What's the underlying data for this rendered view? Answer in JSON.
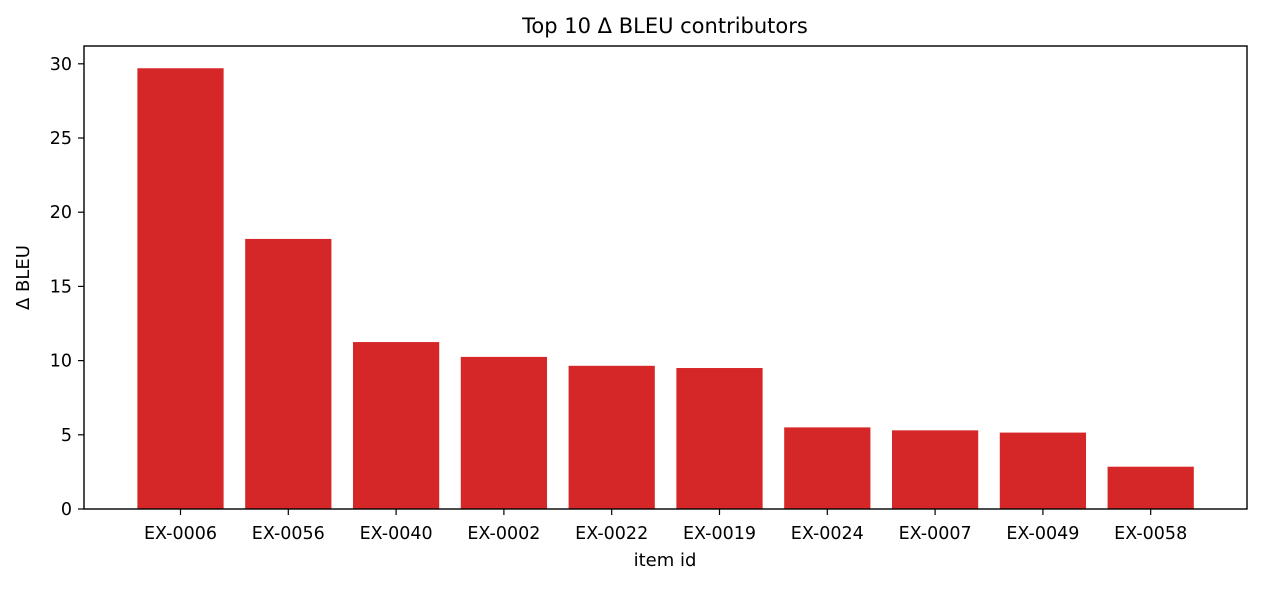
{
  "chart_data": {
    "type": "bar",
    "title": "Top 10 Δ BLEU contributors",
    "xlabel": "item id",
    "ylabel": "Δ BLEU",
    "categories": [
      "EX-0006",
      "EX-0056",
      "EX-0040",
      "EX-0002",
      "EX-0022",
      "EX-0019",
      "EX-0024",
      "EX-0007",
      "EX-0049",
      "EX-0058"
    ],
    "values": [
      29.7,
      18.2,
      11.25,
      10.25,
      9.65,
      9.5,
      5.5,
      5.3,
      5.15,
      2.85
    ],
    "ylim": [
      0,
      31.2
    ],
    "yticks": [
      0,
      5,
      10,
      15,
      20,
      25,
      30
    ],
    "bar_color": "#d62728",
    "grid": false,
    "legend": "none"
  }
}
